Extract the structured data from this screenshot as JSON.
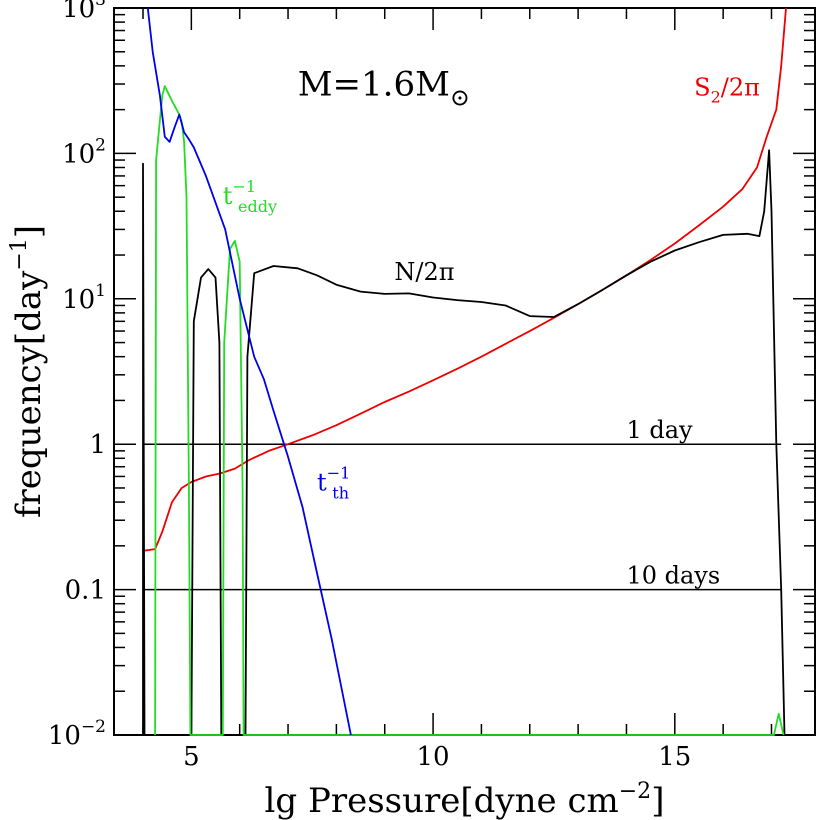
{
  "chart_data": {
    "type": "line",
    "title": "",
    "mass_label": {
      "prefix": "M=1.6M",
      "sub": "⊙"
    },
    "xlabel": {
      "text": "lg Pressure[dyne cm",
      "sup": "−2",
      "tail": "]"
    },
    "ylabel": {
      "text": "frequency[day",
      "sup": "−1",
      "tail": "]"
    },
    "xlim": [
      3.4,
      17.9
    ],
    "ylim": [
      0.01,
      1000
    ],
    "y_scale": "log",
    "grid": false,
    "x_ticks": [
      5,
      10,
      15
    ],
    "x_tick_labels": [
      "5",
      "10",
      "15"
    ],
    "y_ticks": [
      0.01,
      0.1,
      1,
      10,
      100,
      1000
    ],
    "y_tick_labels": [
      {
        "base": "10",
        "sup": "−2"
      },
      {
        "base": "0.1",
        "sup": ""
      },
      {
        "base": "1",
        "sup": ""
      },
      {
        "base": "10",
        "sup": "1"
      },
      {
        "base": "10",
        "sup": "2"
      },
      {
        "base": "10",
        "sup": "3"
      }
    ],
    "reference_lines": [
      {
        "y": 1,
        "x": [
          4.0,
          17.2
        ],
        "label": "1 day",
        "label_x": 14.0
      },
      {
        "y": 0.1,
        "x": [
          4.0,
          17.2
        ],
        "label": "10 days",
        "label_x": 14.0
      }
    ],
    "colors": {
      "N": "#000000",
      "S2": "#ee0000",
      "t_eddy": "#22dd22",
      "t_th": "#0000ee"
    },
    "series": [
      {
        "key": "S2",
        "label": {
          "text": "S",
          "sub": "2",
          "tail": "/2π"
        },
        "label_pos": [
          15.4,
          250
        ],
        "points": [
          [
            4.0,
            0.185
          ],
          [
            4.25,
            0.19
          ],
          [
            4.4,
            0.25
          ],
          [
            4.6,
            0.4
          ],
          [
            4.8,
            0.5
          ],
          [
            5.0,
            0.55
          ],
          [
            5.3,
            0.6
          ],
          [
            5.6,
            0.63
          ],
          [
            5.9,
            0.68
          ],
          [
            6.2,
            0.78
          ],
          [
            6.6,
            0.9
          ],
          [
            7.0,
            1.0
          ],
          [
            7.5,
            1.15
          ],
          [
            8.0,
            1.35
          ],
          [
            8.5,
            1.62
          ],
          [
            9.0,
            1.95
          ],
          [
            9.5,
            2.3
          ],
          [
            10.0,
            2.75
          ],
          [
            10.5,
            3.3
          ],
          [
            11.0,
            4.0
          ],
          [
            11.5,
            4.9
          ],
          [
            12.0,
            6.0
          ],
          [
            12.5,
            7.4
          ],
          [
            13.0,
            9.2
          ],
          [
            13.5,
            11.5
          ],
          [
            14.0,
            14.5
          ],
          [
            14.5,
            18.5
          ],
          [
            15.0,
            24
          ],
          [
            15.5,
            32
          ],
          [
            16.0,
            43
          ],
          [
            16.4,
            57
          ],
          [
            16.7,
            80
          ],
          [
            16.9,
            130
          ],
          [
            17.1,
            200
          ],
          [
            17.2,
            400
          ],
          [
            17.3,
            1000
          ]
        ]
      },
      {
        "key": "N",
        "label": {
          "text": "N/2π",
          "sub": "",
          "tail": ""
        },
        "label_pos": [
          9.2,
          13.5
        ],
        "points": [
          [
            4.0,
            0.01
          ],
          [
            4.0,
            85
          ],
          [
            4.03,
            0.01
          ],
          [
            5.0,
            0.01
          ],
          [
            5.05,
            7
          ],
          [
            5.2,
            14
          ],
          [
            5.35,
            16
          ],
          [
            5.5,
            14
          ],
          [
            5.58,
            5
          ],
          [
            5.62,
            0.01
          ],
          [
            6.12,
            0.01
          ],
          [
            6.16,
            4
          ],
          [
            6.3,
            15
          ],
          [
            6.7,
            16.8
          ],
          [
            7.2,
            16.2
          ],
          [
            7.6,
            14.5
          ],
          [
            8.0,
            12.5
          ],
          [
            8.5,
            11.2
          ],
          [
            9.0,
            10.8
          ],
          [
            9.5,
            10.9
          ],
          [
            10.0,
            10.2
          ],
          [
            10.5,
            9.8
          ],
          [
            11.0,
            9.5
          ],
          [
            11.5,
            9.0
          ],
          [
            12.0,
            7.6
          ],
          [
            12.5,
            7.5
          ],
          [
            13.0,
            9.2
          ],
          [
            13.5,
            11.5
          ],
          [
            14.0,
            14.5
          ],
          [
            14.5,
            18
          ],
          [
            15.0,
            21.5
          ],
          [
            15.5,
            24.5
          ],
          [
            16.0,
            27.5
          ],
          [
            16.5,
            28
          ],
          [
            16.75,
            27
          ],
          [
            16.85,
            40
          ],
          [
            16.95,
            105
          ],
          [
            17.0,
            40
          ],
          [
            17.1,
            1.0
          ],
          [
            17.2,
            0.1
          ],
          [
            17.27,
            0.01
          ]
        ]
      },
      {
        "key": "t_eddy",
        "label": {
          "text": "t",
          "sup": "−1",
          "sub": "eddy"
        },
        "label_pos": [
          5.65,
          45
        ],
        "points": [
          [
            4.25,
            0.01
          ],
          [
            4.27,
            90
          ],
          [
            4.4,
            250
          ],
          [
            4.45,
            290
          ],
          [
            4.6,
            230
          ],
          [
            4.75,
            185
          ],
          [
            4.8,
            165
          ],
          [
            4.85,
            120
          ],
          [
            4.9,
            50
          ],
          [
            4.95,
            0.5
          ],
          [
            4.98,
            0.01
          ],
          [
            5.65,
            0.01
          ],
          [
            5.68,
            5
          ],
          [
            5.8,
            22
          ],
          [
            5.9,
            25
          ],
          [
            6.0,
            18
          ],
          [
            6.06,
            0.5
          ],
          [
            6.08,
            0.01
          ],
          [
            17.05,
            0.01
          ],
          [
            17.15,
            0.014
          ],
          [
            17.25,
            0.01
          ]
        ]
      },
      {
        "key": "t_th",
        "label": {
          "text": "t",
          "sup": "−1",
          "sub": "th"
        },
        "label_pos": [
          7.6,
          0.48
        ],
        "points": [
          [
            4.1,
            1000
          ],
          [
            4.2,
            500
          ],
          [
            4.35,
            250
          ],
          [
            4.45,
            130
          ],
          [
            4.55,
            120
          ],
          [
            4.65,
            150
          ],
          [
            4.75,
            185
          ],
          [
            4.85,
            140
          ],
          [
            4.95,
            125
          ],
          [
            5.05,
            110
          ],
          [
            5.3,
            70
          ],
          [
            5.7,
            30
          ],
          [
            6.0,
            10
          ],
          [
            6.3,
            4
          ],
          [
            6.5,
            2.8
          ],
          [
            6.7,
            1.7
          ],
          [
            7.0,
            0.82
          ],
          [
            7.3,
            0.37
          ],
          [
            7.6,
            0.13
          ],
          [
            7.9,
            0.046
          ],
          [
            8.3,
            0.01
          ]
        ]
      }
    ]
  }
}
